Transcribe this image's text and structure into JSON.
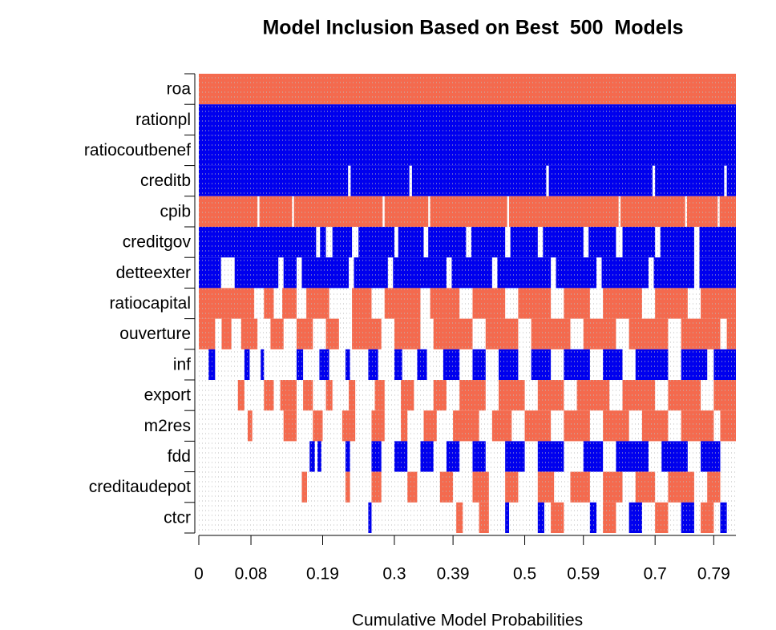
{
  "chart_data": {
    "type": "inclusion-map",
    "title": "Model Inclusion Based on Best  500  Models",
    "x_label": "Cumulative Model Probabilities",
    "pos_color": "#f46a4e",
    "neg_color": "#0000ee",
    "xlim": [
      0,
      0.824
    ],
    "xticks": [
      0,
      0.08,
      0.19,
      0.3,
      0.39,
      0.5,
      0.59,
      0.7,
      0.79
    ],
    "rows": [
      {
        "name": "roa",
        "pos": [
          [
            0,
            0.824
          ]
        ],
        "neg": []
      },
      {
        "name": "rationpl",
        "pos": [],
        "neg": [
          [
            0,
            0.824
          ]
        ]
      },
      {
        "name": "ratiocoutbenef",
        "pos": [],
        "neg": [
          [
            0,
            0.824
          ]
        ]
      },
      {
        "name": "creditb",
        "pos": [],
        "neg": [
          [
            0,
            0.229
          ],
          [
            0.233,
            0.323
          ],
          [
            0.327,
            0.533
          ],
          [
            0.537,
            0.696
          ],
          [
            0.7,
            0.806
          ],
          [
            0.81,
            0.824
          ]
        ]
      },
      {
        "name": "cpib",
        "pos": [
          [
            0,
            0.09
          ],
          [
            0.093,
            0.143
          ],
          [
            0.146,
            0.282
          ],
          [
            0.285,
            0.352
          ],
          [
            0.355,
            0.473
          ],
          [
            0.476,
            0.644
          ],
          [
            0.647,
            0.746
          ],
          [
            0.749,
            0.796
          ],
          [
            0.799,
            0.824
          ]
        ],
        "neg": []
      },
      {
        "name": "creditgov",
        "pos": [],
        "neg": [
          [
            0,
            0.18
          ],
          [
            0.186,
            0.195
          ],
          [
            0.205,
            0.235
          ],
          [
            0.245,
            0.3
          ],
          [
            0.306,
            0.345
          ],
          [
            0.352,
            0.41
          ],
          [
            0.418,
            0.47
          ],
          [
            0.478,
            0.52
          ],
          [
            0.528,
            0.59
          ],
          [
            0.598,
            0.64
          ],
          [
            0.65,
            0.7
          ],
          [
            0.708,
            0.76
          ],
          [
            0.768,
            0.824
          ]
        ]
      },
      {
        "name": "detteexter",
        "pos": [],
        "neg": [
          [
            0,
            0.034
          ],
          [
            0.055,
            0.122
          ],
          [
            0.13,
            0.15
          ],
          [
            0.158,
            0.23
          ],
          [
            0.238,
            0.29
          ],
          [
            0.298,
            0.38
          ],
          [
            0.388,
            0.45
          ],
          [
            0.458,
            0.54
          ],
          [
            0.548,
            0.61
          ],
          [
            0.618,
            0.69
          ],
          [
            0.698,
            0.76
          ],
          [
            0.768,
            0.824
          ]
        ]
      },
      {
        "name": "ratiocapital",
        "pos": [
          [
            0,
            0.085
          ],
          [
            0.1,
            0.115
          ],
          [
            0.128,
            0.15
          ],
          [
            0.165,
            0.2
          ],
          [
            0.235,
            0.265
          ],
          [
            0.285,
            0.34
          ],
          [
            0.355,
            0.4
          ],
          [
            0.42,
            0.47
          ],
          [
            0.49,
            0.54
          ],
          [
            0.56,
            0.6
          ],
          [
            0.62,
            0.68
          ],
          [
            0.7,
            0.75
          ],
          [
            0.77,
            0.824
          ]
        ],
        "neg": []
      },
      {
        "name": "ouverture",
        "pos": [
          [
            0,
            0.025
          ],
          [
            0.035,
            0.05
          ],
          [
            0.065,
            0.09
          ],
          [
            0.11,
            0.13
          ],
          [
            0.15,
            0.175
          ],
          [
            0.195,
            0.215
          ],
          [
            0.235,
            0.28
          ],
          [
            0.3,
            0.34
          ],
          [
            0.36,
            0.42
          ],
          [
            0.44,
            0.49
          ],
          [
            0.51,
            0.57
          ],
          [
            0.59,
            0.64
          ],
          [
            0.66,
            0.72
          ],
          [
            0.74,
            0.8
          ],
          [
            0.81,
            0.824
          ]
        ],
        "neg": []
      },
      {
        "name": "inf",
        "pos": [],
        "neg": [
          [
            0.015,
            0.025
          ],
          [
            0.07,
            0.078
          ],
          [
            0.095,
            0.1
          ],
          [
            0.15,
            0.16
          ],
          [
            0.185,
            0.2
          ],
          [
            0.225,
            0.232
          ],
          [
            0.26,
            0.275
          ],
          [
            0.3,
            0.312
          ],
          [
            0.335,
            0.35
          ],
          [
            0.375,
            0.4
          ],
          [
            0.42,
            0.44
          ],
          [
            0.46,
            0.49
          ],
          [
            0.51,
            0.54
          ],
          [
            0.56,
            0.6
          ],
          [
            0.62,
            0.65
          ],
          [
            0.67,
            0.72
          ],
          [
            0.74,
            0.78
          ],
          [
            0.79,
            0.824
          ]
        ]
      },
      {
        "name": "export",
        "pos": [
          [
            0.06,
            0.07
          ],
          [
            0.1,
            0.115
          ],
          [
            0.125,
            0.15
          ],
          [
            0.16,
            0.175
          ],
          [
            0.195,
            0.205
          ],
          [
            0.23,
            0.24
          ],
          [
            0.27,
            0.285
          ],
          [
            0.31,
            0.33
          ],
          [
            0.36,
            0.38
          ],
          [
            0.4,
            0.44
          ],
          [
            0.46,
            0.5
          ],
          [
            0.52,
            0.56
          ],
          [
            0.58,
            0.63
          ],
          [
            0.65,
            0.7
          ],
          [
            0.72,
            0.77
          ],
          [
            0.79,
            0.824
          ]
        ],
        "neg": []
      },
      {
        "name": "m2res",
        "pos": [
          [
            0.075,
            0.082
          ],
          [
            0.13,
            0.15
          ],
          [
            0.175,
            0.19
          ],
          [
            0.22,
            0.24
          ],
          [
            0.265,
            0.285
          ],
          [
            0.31,
            0.32
          ],
          [
            0.345,
            0.365
          ],
          [
            0.39,
            0.43
          ],
          [
            0.45,
            0.48
          ],
          [
            0.5,
            0.54
          ],
          [
            0.56,
            0.6
          ],
          [
            0.62,
            0.66
          ],
          [
            0.68,
            0.72
          ],
          [
            0.74,
            0.79
          ],
          [
            0.8,
            0.824
          ]
        ],
        "neg": []
      },
      {
        "name": "fdd",
        "pos": [],
        "neg": [
          [
            0.17,
            0.178
          ],
          [
            0.182,
            0.188
          ],
          [
            0.225,
            0.232
          ],
          [
            0.265,
            0.28
          ],
          [
            0.3,
            0.32
          ],
          [
            0.34,
            0.36
          ],
          [
            0.38,
            0.4
          ],
          [
            0.42,
            0.44
          ],
          [
            0.47,
            0.5
          ],
          [
            0.52,
            0.56
          ],
          [
            0.59,
            0.62
          ],
          [
            0.64,
            0.69
          ],
          [
            0.71,
            0.75
          ],
          [
            0.77,
            0.8
          ]
        ]
      },
      {
        "name": "creditaudepot",
        "pos": [
          [
            0.158,
            0.166
          ],
          [
            0.225,
            0.232
          ],
          [
            0.265,
            0.28
          ],
          [
            0.32,
            0.335
          ],
          [
            0.37,
            0.39
          ],
          [
            0.42,
            0.445
          ],
          [
            0.47,
            0.49
          ],
          [
            0.52,
            0.545
          ],
          [
            0.57,
            0.6
          ],
          [
            0.62,
            0.65
          ],
          [
            0.67,
            0.7
          ],
          [
            0.72,
            0.76
          ],
          [
            0.78,
            0.8
          ]
        ],
        "neg": []
      },
      {
        "name": "ctcr",
        "pos": [
          [
            0.395,
            0.405
          ],
          [
            0.43,
            0.445
          ],
          [
            0.54,
            0.56
          ],
          [
            0.62,
            0.64
          ],
          [
            0.7,
            0.72
          ],
          [
            0.77,
            0.79
          ]
        ],
        "neg": [
          [
            0.26,
            0.265
          ],
          [
            0.47,
            0.476
          ],
          [
            0.52,
            0.53
          ],
          [
            0.6,
            0.61
          ],
          [
            0.66,
            0.68
          ],
          [
            0.74,
            0.76
          ],
          [
            0.8,
            0.81
          ]
        ]
      }
    ]
  }
}
